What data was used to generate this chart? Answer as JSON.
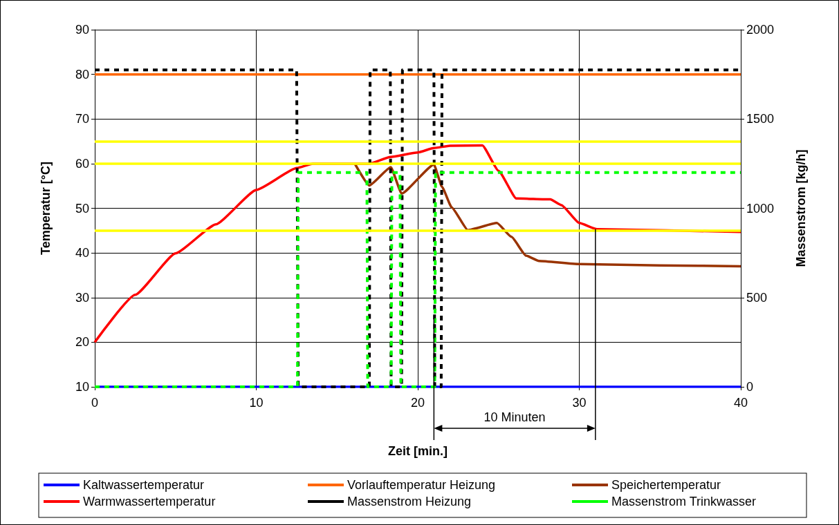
{
  "chart_data": {
    "type": "line",
    "xlabel": "Zeit [min.]",
    "ylabel": "Temperatur [°C]",
    "y2label": "Massenstrom [kg/h]",
    "xlim": [
      0,
      40
    ],
    "xticks": [
      0,
      10,
      20,
      30,
      40
    ],
    "ylim": [
      10,
      90
    ],
    "yticks": [
      10,
      20,
      30,
      40,
      50,
      60,
      70,
      80,
      90
    ],
    "y2lim": [
      0,
      2000
    ],
    "y2ticks": [
      0,
      500,
      1000,
      1500,
      2000
    ],
    "grid": true,
    "legend": "bottom",
    "marker": "none",
    "series": [
      {
        "name": "Kaltwassertemperatur",
        "color": "#0000ff",
        "x": [
          0,
          40
        ],
        "values": [
          10,
          10
        ]
      },
      {
        "name": "Vorlauftemperatur Heizung",
        "color": "#ff6600",
        "x": [
          0,
          40
        ],
        "values": [
          80,
          80
        ]
      },
      {
        "name": "Speichertemperatur",
        "color": "#993300",
        "x": [
          16.1,
          17,
          18.33,
          19,
          21,
          21.5,
          22.1,
          23.1,
          24.9,
          25.8,
          26.7,
          27.5,
          30,
          35,
          40
        ],
        "values": [
          60,
          55.1,
          59.2,
          53.3,
          59.8,
          54.8,
          50.2,
          45.1,
          46.7,
          43.6,
          39.4,
          38.2,
          37.5,
          37.2,
          37
        ]
      },
      {
        "name": "Warmwassertemperatur",
        "color": "#ff0000",
        "x": [
          0,
          2.5,
          5,
          7.5,
          10,
          12.5,
          13.5,
          16,
          17,
          18.3,
          20,
          21,
          22,
          24,
          25,
          26.1,
          28.2,
          28.9,
          30,
          31.1,
          40
        ],
        "values": [
          20,
          30.6,
          39.9,
          46.4,
          54.1,
          59,
          60,
          60,
          60,
          61.5,
          62.5,
          63.5,
          64,
          64.1,
          58.4,
          52.2,
          52,
          50.7,
          46.7,
          45.3,
          44.7
        ]
      },
      {
        "name": "Massenstrom Heizung",
        "color": "#000000",
        "axis": "y2",
        "line_style": "dashed",
        "x": [
          0,
          12.5,
          12.6,
          17,
          17.05,
          18.3,
          18.35,
          19,
          19.05,
          21,
          21.05,
          21.45,
          21.5,
          40
        ],
        "values": [
          1775,
          1775,
          0,
          0,
          1775,
          1775,
          0,
          0,
          1775,
          1775,
          0,
          0,
          1775,
          1775
        ]
      },
      {
        "name": "Massenstrom Trinkwasser",
        "color": "#00ff00",
        "axis": "y2",
        "line_style": "dashed",
        "x": [
          0,
          12.55,
          12.6,
          16.85,
          16.9,
          18.35,
          18.4,
          18.9,
          18.95,
          21.05,
          21.1,
          40
        ],
        "values": [
          0,
          0,
          1200,
          1200,
          0,
          0,
          1200,
          1200,
          0,
          0,
          1200,
          1200
        ]
      }
    ],
    "ref_lines": [
      {
        "axis": "y",
        "value": 65,
        "color": "#ffff00"
      },
      {
        "axis": "y",
        "value": 60,
        "color": "#ffff00"
      },
      {
        "axis": "y",
        "value": 45,
        "color": "#ffff00"
      },
      {
        "axis": "x",
        "value": 21,
        "color": "#000000"
      },
      {
        "axis": "x",
        "value": 31,
        "color": "#000000"
      }
    ],
    "annotations": [
      "10 Minuten"
    ]
  }
}
